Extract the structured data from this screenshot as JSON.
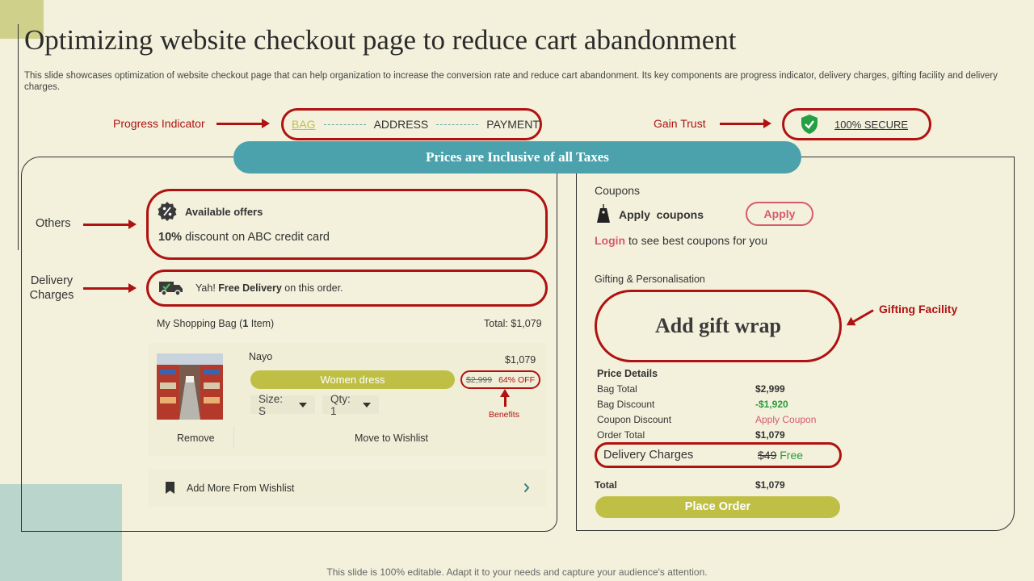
{
  "header": {
    "title": "Optimizing website checkout page to reduce cart abandonment",
    "subtitle": "This slide showcases optimization of website checkout page that can help organization to increase the conversion rate and reduce cart abandonment. Its key components are progress indicator, delivery charges, gifting facility and delivery charges."
  },
  "callouts": {
    "progress_indicator": "Progress Indicator",
    "gain_trust": "Gain Trust",
    "others": "Others",
    "delivery_charges_line1": "Delivery",
    "delivery_charges_line2": "Charges",
    "gifting_facility": "Gifting Facility",
    "benefits": "Benefits"
  },
  "progress": {
    "steps": [
      "BAG",
      "ADDRESS",
      "PAYMENT"
    ]
  },
  "secure": {
    "label": "100% SECURE"
  },
  "banner": {
    "text": "Prices are Inclusive of all Taxes"
  },
  "offers": {
    "title": "Available offers",
    "discount_bold": "10%",
    "discount_text": "discount on ABC credit card"
  },
  "delivery": {
    "prefix": "Yah!",
    "bold": "Free Delivery",
    "suffix": "on this order."
  },
  "bag": {
    "label_prefix": "My Shopping Bag (",
    "count": "1",
    "label_suffix": " Item)",
    "total_label": "Total:",
    "total_value": "$1,079",
    "item": {
      "brand": "Nayo",
      "price": "$1,079",
      "category": "Women dress",
      "old_price": "$2,999",
      "discount": "64% OFF",
      "size": "Size: S",
      "qty": "Qty: 1",
      "remove_label": "Remove",
      "wishlist_label": "Move to Wishlist"
    },
    "add_more_label": "Add More From Wishlist"
  },
  "coupons": {
    "heading": "Coupons",
    "apply_coupons": "Apply  coupons",
    "apply_button": "Apply",
    "login_link": "Login",
    "login_text": "to see best coupons for you"
  },
  "gifting": {
    "heading": "Gifting & Personalisation",
    "gift_wrap": "Add gift wrap"
  },
  "price_details": {
    "heading": "Price Details",
    "rows": [
      {
        "label": "Bag Total",
        "value": "$2,999"
      },
      {
        "label": "Bag Discount",
        "value": "-$1,920"
      },
      {
        "label": "Coupon Discount",
        "value": "Apply Coupon"
      },
      {
        "label": "Order Total",
        "value": "$1,079"
      }
    ],
    "delivery_label": "Delivery Charges",
    "delivery_old": "$49",
    "delivery_new": "Free",
    "total_label": "Total",
    "total_value": "$1,079",
    "place_order": "Place Order"
  },
  "footer": {
    "text": "This slide is 100% editable. Adapt it to your needs and capture your audience's attention."
  },
  "colors": {
    "background": "#f3f1dc",
    "accent_red": "#b01212",
    "olive": "#bfbf46",
    "teal": "#4ba2ad",
    "green": "#2a9a3c",
    "pink": "#d75a6a"
  }
}
